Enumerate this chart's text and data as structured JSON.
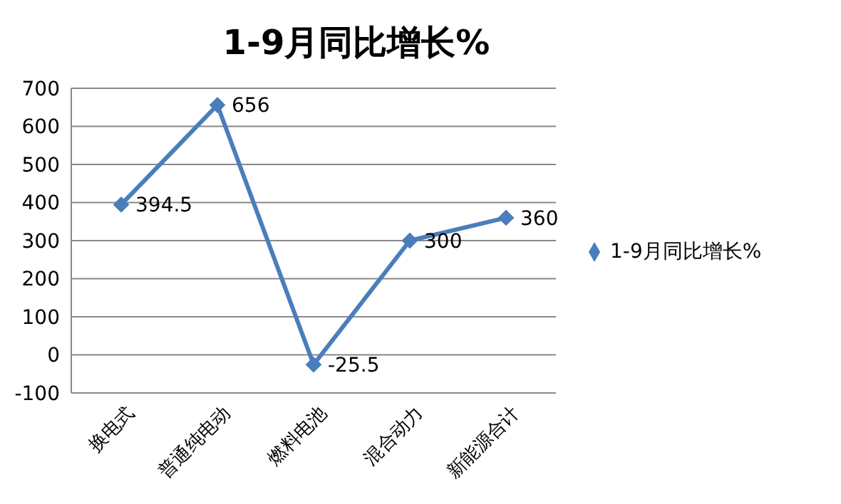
{
  "chart_data": {
    "type": "line",
    "title": "1-9月同比增长%",
    "categories": [
      "换电式",
      "普通纯电动",
      "燃料电池",
      "混合动力",
      "新能源合计"
    ],
    "series": [
      {
        "name": "1-9月同比增长%",
        "color": "#4a7ebb",
        "values": [
          394.5,
          656,
          -25.5,
          300,
          360
        ]
      }
    ],
    "ylim": [
      -100,
      700
    ],
    "yticks": [
      -100,
      0,
      100,
      200,
      300,
      400,
      500,
      600,
      700
    ],
    "grid": "y",
    "legend": "right",
    "marker": "diamond",
    "line_style": "solid",
    "data_labels": true
  }
}
